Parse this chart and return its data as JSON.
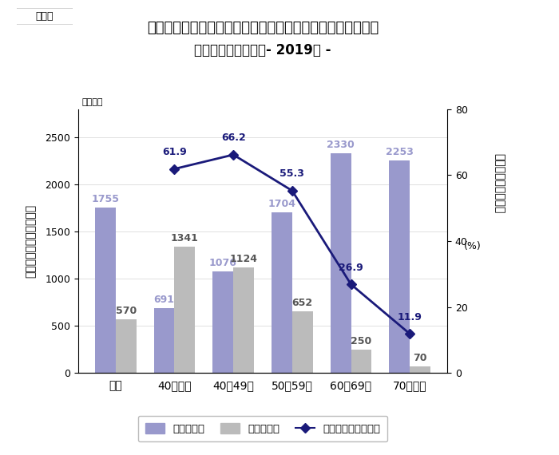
{
  "title_line1": "世帯主の年齢階級別貯蓄・負債現在高、負債保有世帯の割合",
  "title_line2": "（二人以上の世帯）- 2019年 -",
  "label_tag": "図表６",
  "categories": [
    "平均",
    "40歳未満",
    "40〜49歳",
    "50〜59歳",
    "60〜69歳",
    "70歳以上"
  ],
  "savings": [
    1755,
    691,
    1076,
    1704,
    2330,
    2253
  ],
  "debt": [
    570,
    1341,
    1124,
    652,
    250,
    70
  ],
  "debt_ratio": [
    null,
    61.9,
    66.2,
    55.3,
    26.9,
    11.9
  ],
  "savings_color": "#9999cc",
  "debt_color": "#bbbbbb",
  "line_color": "#1a1a7a",
  "bar_width": 0.35,
  "ylim_left": [
    0,
    2800
  ],
  "ylim_right": [
    0,
    80
  ],
  "yticks_left": [
    0,
    500,
    1000,
    1500,
    2000,
    2500
  ],
  "yticks_right": [
    0,
    20,
    40,
    60,
    80
  ],
  "ylabel_left": "貯蓄現在高・負債現在高",
  "ylabel_left_unit": "（万円）",
  "ylabel_right": "負債保有世帯の割合",
  "ylabel_right_unit": "(%)",
  "legend_savings": "貯蓄現在高",
  "legend_debt": "負債現在高",
  "legend_ratio": "負債保有世帯の割合",
  "bg_color": "#ffffff",
  "border_color": "#aaaaaa"
}
